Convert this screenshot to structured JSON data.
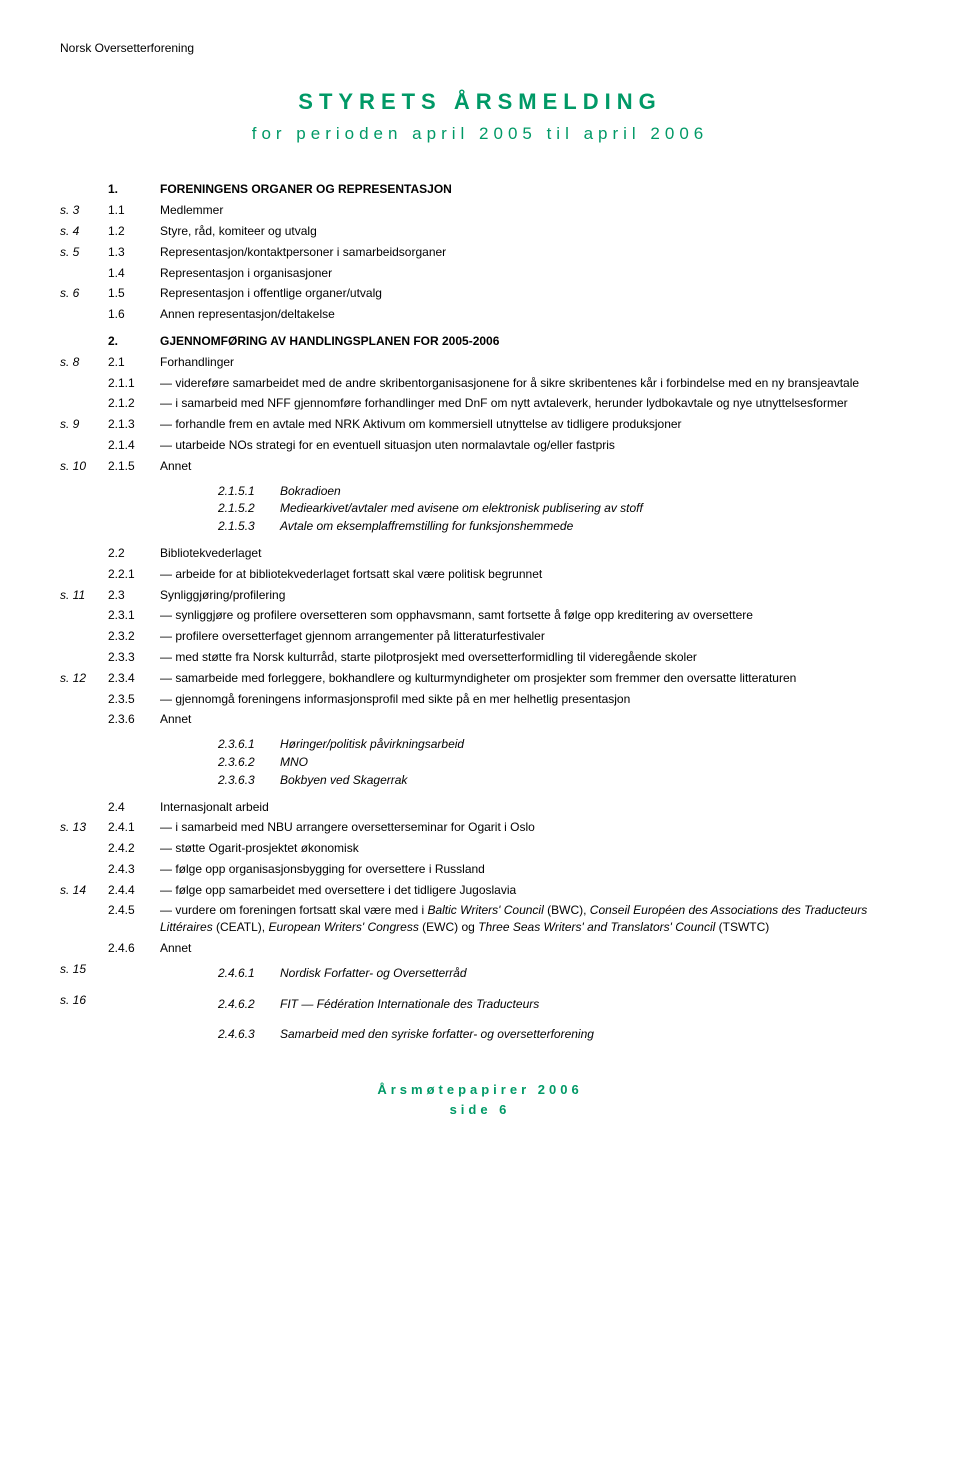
{
  "header": {
    "org": "Norsk Oversetterforening",
    "title": "STYRETS ÅRSMELDING",
    "subtitle": "for perioden april 2005 til april 2006"
  },
  "toc": [
    {
      "page": "",
      "num": "1.",
      "text": "FORENINGENS ORGANER OG REPRESENTASJON",
      "bold": true
    },
    {
      "page": "s. 3",
      "num": "1.1",
      "text": "Medlemmer"
    },
    {
      "page": "s. 4",
      "num": "1.2",
      "text": "Styre, råd, komiteer og utvalg"
    },
    {
      "page": "s. 5",
      "num": "1.3",
      "text": "Representasjon/kontaktpersoner i samarbeidsorganer"
    },
    {
      "page": "",
      "num": "1.4",
      "text": "Representasjon i organisasjoner"
    },
    {
      "page": "s. 6",
      "num": "1.5",
      "text": "Representasjon i offentlige organer/utvalg"
    },
    {
      "page": "",
      "num": "1.6",
      "text": "Annen representasjon/deltakelse"
    },
    {
      "page": "",
      "num": "2.",
      "text": "GJENNOMFØRING AV HANDLINGSPLANEN FOR 2005-2006",
      "bold": true
    },
    {
      "page": "s. 8",
      "num": "2.1",
      "text": "Forhandlinger"
    },
    {
      "page": "",
      "num": "2.1.1",
      "text": "— videreføre samarbeidet med de andre skribentorganisasjonene for å sikre skribentenes kår i forbindelse med en ny bransjeavtale"
    },
    {
      "page": "",
      "num": "2.1.2",
      "text": "— i samarbeid med NFF gjennomføre forhandlinger med DnF om nytt avtaleverk, herunder lydbokavtale og nye utnyttelsesformer"
    },
    {
      "page": "s. 9",
      "num": "2.1.3",
      "text": "— forhandle frem en avtale med NRK Aktivum om kommersiell utnyttelse av tidligere produksjoner"
    },
    {
      "page": "",
      "num": "2.1.4",
      "text": "— utarbeide NOs strategi for en eventuell situasjon uten normalavtale og/eller fastpris"
    },
    {
      "page": "s. 10",
      "num": "2.1.5",
      "text": "Annet",
      "subs": [
        {
          "n": "2.1.5.1",
          "t": "Bokradioen"
        },
        {
          "n": "2.1.5.2",
          "t": "Mediearkivet/avtaler med avisene om elektronisk publisering av stoff"
        },
        {
          "n": "2.1.5.3",
          "t": "Avtale om eksemplaffremstilling for funksjonshemmede"
        }
      ]
    },
    {
      "page": "",
      "num": "2.2",
      "text": "Bibliotekvederlaget"
    },
    {
      "page": "",
      "num": "2.2.1",
      "text": "— arbeide for at bibliotekvederlaget fortsatt skal være politisk begrunnet"
    },
    {
      "page": "s. 11",
      "num": "2.3",
      "text": "Synliggjøring/profilering"
    },
    {
      "page": "",
      "num": "2.3.1",
      "text": "— synliggjøre og profilere oversetteren som opphavsmann, samt fortsette å følge opp kreditering av oversettere"
    },
    {
      "page": "",
      "num": "2.3.2",
      "text": "— profilere oversetterfaget gjennom arrangementer på litteraturfestivaler"
    },
    {
      "page": "",
      "num": "2.3.3",
      "text": "— med støtte fra Norsk kulturråd, starte pilotprosjekt med oversetterformidling til videregående skoler"
    },
    {
      "page": "s. 12",
      "num": "2.3.4",
      "text": "— samarbeide med forleggere, bokhandlere og kulturmyndigheter om prosjekter som fremmer den oversatte litteraturen"
    },
    {
      "page": "",
      "num": "2.3.5",
      "text": "— gjennomgå foreningens informasjonsprofil med sikte på en mer helhetlig presentasjon"
    },
    {
      "page": "",
      "num": "2.3.6",
      "text": "Annet",
      "subs": [
        {
          "n": "2.3.6.1",
          "t": "Høringer/politisk påvirkningsarbeid"
        },
        {
          "n": "2.3.6.2",
          "t": "MNO"
        },
        {
          "n": "2.3.6.3",
          "t": "Bokbyen ved Skagerrak"
        }
      ]
    },
    {
      "page": "",
      "num": "2.4",
      "text": "Internasjonalt arbeid"
    },
    {
      "page": "s. 13",
      "num": "2.4.1",
      "text": "— i samarbeid med NBU arrangere oversetterseminar for Ogarit i Oslo"
    },
    {
      "page": "",
      "num": "2.4.2",
      "text": "— støtte Ogarit-prosjektet økonomisk"
    },
    {
      "page": "",
      "num": "2.4.3",
      "text": "— følge opp organisasjonsbygging for oversettere i Russland"
    },
    {
      "page": "s. 14",
      "num": "2.4.4",
      "text": "— følge opp samarbeidet med oversettere i det tidligere Jugoslavia"
    },
    {
      "page": "",
      "num": "2.4.5",
      "text_html": "— vurdere om foreningen fortsatt skal være med i <span class='italic-inline'>Baltic Writers' Council</span> (BWC), <span class='italic-inline'>Conseil Européen des Associations des Traducteurs Littéraires</span> (CEATL), <span class='italic-inline'>European Writers' Congress</span> (EWC) og <span class='italic-inline'>Three Seas Writers' and Translators' Council</span> (TSWTC)"
    },
    {
      "page": "",
      "num": "2.4.6",
      "text": "Annet",
      "pagesubs": [
        {
          "p": "s. 15",
          "n": "2.4.6.1",
          "t": "Nordisk Forfatter- og Oversetterråd"
        },
        {
          "p": "s. 16",
          "n": "2.4.6.2",
          "t": "FIT — Fédération Internationale des Traducteurs"
        },
        {
          "p": "",
          "n": "2.4.6.3",
          "t": "Samarbeid med den syriske forfatter- og oversetterforening"
        }
      ]
    }
  ],
  "footer": {
    "line1": "Årsmøtepapirer 2006",
    "line2": "side 6"
  },
  "colors": {
    "accent": "#009966",
    "text": "#000000",
    "bg": "#ffffff"
  }
}
